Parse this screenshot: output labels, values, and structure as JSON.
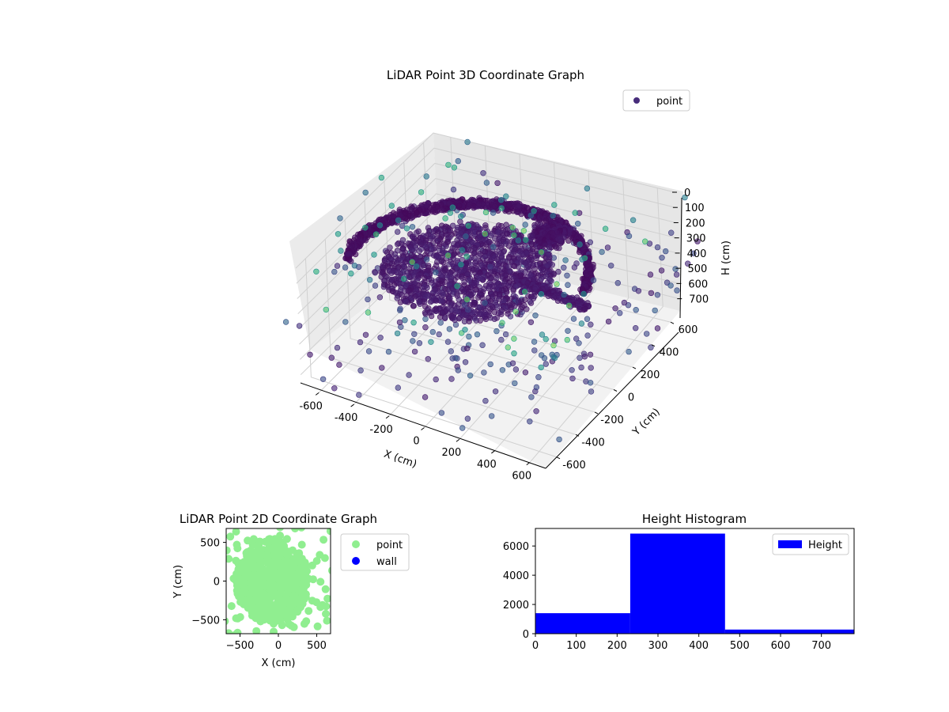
{
  "chart_data": [
    {
      "type": "scatter3d",
      "title": "LiDAR Point 3D Coordinate Graph",
      "xlabel": "X (cm)",
      "ylabel": "Y (cm)",
      "zlabel": "H (cm)",
      "xticks": [
        -600,
        -400,
        -200,
        0,
        200,
        400,
        600
      ],
      "yticks": [
        -600,
        -400,
        -200,
        0,
        200,
        400,
        600
      ],
      "zticks": [
        0,
        100,
        200,
        300,
        400,
        500,
        600,
        700
      ],
      "xlim": [
        -700,
        700
      ],
      "ylim": [
        -700,
        700
      ],
      "zlim": [
        0,
        780
      ],
      "z_inverted": true,
      "colormap": "viridis",
      "grid": true,
      "legend": {
        "location": "upper-right",
        "entries": [
          {
            "label": "point",
            "color": "#472d7b"
          }
        ]
      },
      "structure_summary": {
        "dense_ring": {
          "radius_cm": 620,
          "height_cm": [
            240,
            300
          ]
        },
        "dense_floor_disc": {
          "center_cm": [
            -120,
            0
          ],
          "radius_cm": [
            420,
            470
          ],
          "height_cm": [
            250,
            300
          ]
        },
        "sparse_scatter": {
          "extent_cm": [
            -800,
            800
          ],
          "height_cm": [
            0,
            740
          ]
        }
      }
    },
    {
      "type": "scatter",
      "title": "LiDAR Point 2D Coordinate Graph",
      "xlabel": "X (cm)",
      "ylabel": "Y (cm)",
      "xticks": [
        -500,
        0,
        500
      ],
      "yticks": [
        -500,
        0,
        500
      ],
      "xlim": [
        -680,
        680
      ],
      "ylim": [
        -680,
        680
      ],
      "series": [
        {
          "name": "point",
          "color": "#90ee90"
        },
        {
          "name": "wall",
          "color": "#0000ff"
        }
      ],
      "legend": {
        "location": "outside-right"
      }
    },
    {
      "type": "bar",
      "title": "Height Histogram",
      "bins": [
        [
          0,
          232
        ],
        [
          232,
          464
        ],
        [
          464,
          780
        ]
      ],
      "values": [
        1400,
        6850,
        280
      ],
      "xticks": [
        0,
        100,
        200,
        300,
        400,
        500,
        600,
        700
      ],
      "yticks": [
        0,
        2000,
        4000,
        6000
      ],
      "xlim": [
        0,
        780
      ],
      "ylim": [
        0,
        7200
      ],
      "color": "#0000ff",
      "series": [
        {
          "name": "Height",
          "color": "#0000ff"
        }
      ],
      "legend": {
        "location": "upper-right"
      }
    }
  ]
}
